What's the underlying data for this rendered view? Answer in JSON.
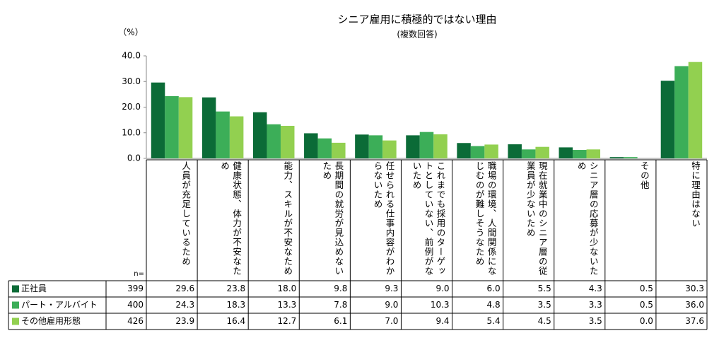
{
  "chart_data": {
    "type": "bar",
    "title": "シニア雇用に積極的ではない理由",
    "subtitle": "(複数回答)",
    "y_label": "（%）",
    "n_label": "n=",
    "categories": [
      "人員が充足しているため",
      "健康状態、体力が不安なため",
      "能力、スキルが不安なため",
      "長期間の就労が見込めないため",
      "任せられる仕事内容がわからないため",
      "これまでも採用のターゲットとしていない、前例がないため",
      "職場の環境、人間関係になじむのが難しそうなため",
      "現在就業中のシニア層の従業員が少ないため",
      "シニア層の応募が少ないため",
      "その他",
      "特に理由はない"
    ],
    "series": [
      {
        "name": "正社員",
        "color": "#0b6b37",
        "n": 399,
        "values": [
          29.6,
          23.8,
          18.0,
          9.8,
          9.3,
          9.0,
          6.0,
          5.5,
          4.3,
          0.5,
          30.3
        ],
        "value_labels": [
          "29.6",
          "23.8",
          "18.0",
          "9.8",
          "9.3",
          "9.0",
          "6.0",
          "5.5",
          "4.3",
          "0.5",
          "30.3"
        ]
      },
      {
        "name": "パート・アルバイト",
        "color": "#3cae58",
        "n": 400,
        "values": [
          24.3,
          18.3,
          13.3,
          7.8,
          9.0,
          10.3,
          4.8,
          3.5,
          3.3,
          0.5,
          36.0
        ],
        "value_labels": [
          "24.3",
          "18.3",
          "13.3",
          "7.8",
          "9.0",
          "10.3",
          "4.8",
          "3.5",
          "3.3",
          "0.5",
          "36.0"
        ]
      },
      {
        "name": "その他雇用形態",
        "color": "#92d050",
        "n": 426,
        "values": [
          23.9,
          16.4,
          12.7,
          6.1,
          7.0,
          9.4,
          5.4,
          4.5,
          3.5,
          0.0,
          37.6
        ],
        "value_labels": [
          "23.9",
          "16.4",
          "12.7",
          "6.1",
          "7.0",
          "9.4",
          "5.4",
          "4.5",
          "3.5",
          "0.0",
          "37.6"
        ]
      }
    ],
    "ylim": [
      0,
      40
    ],
    "yticks": [
      {
        "value": 0,
        "label": "0.0"
      },
      {
        "value": 10,
        "label": "10.0"
      },
      {
        "value": 20,
        "label": "20.0"
      },
      {
        "value": 30,
        "label": "30.0"
      },
      {
        "value": 40,
        "label": "40.0"
      }
    ],
    "grid": false
  }
}
